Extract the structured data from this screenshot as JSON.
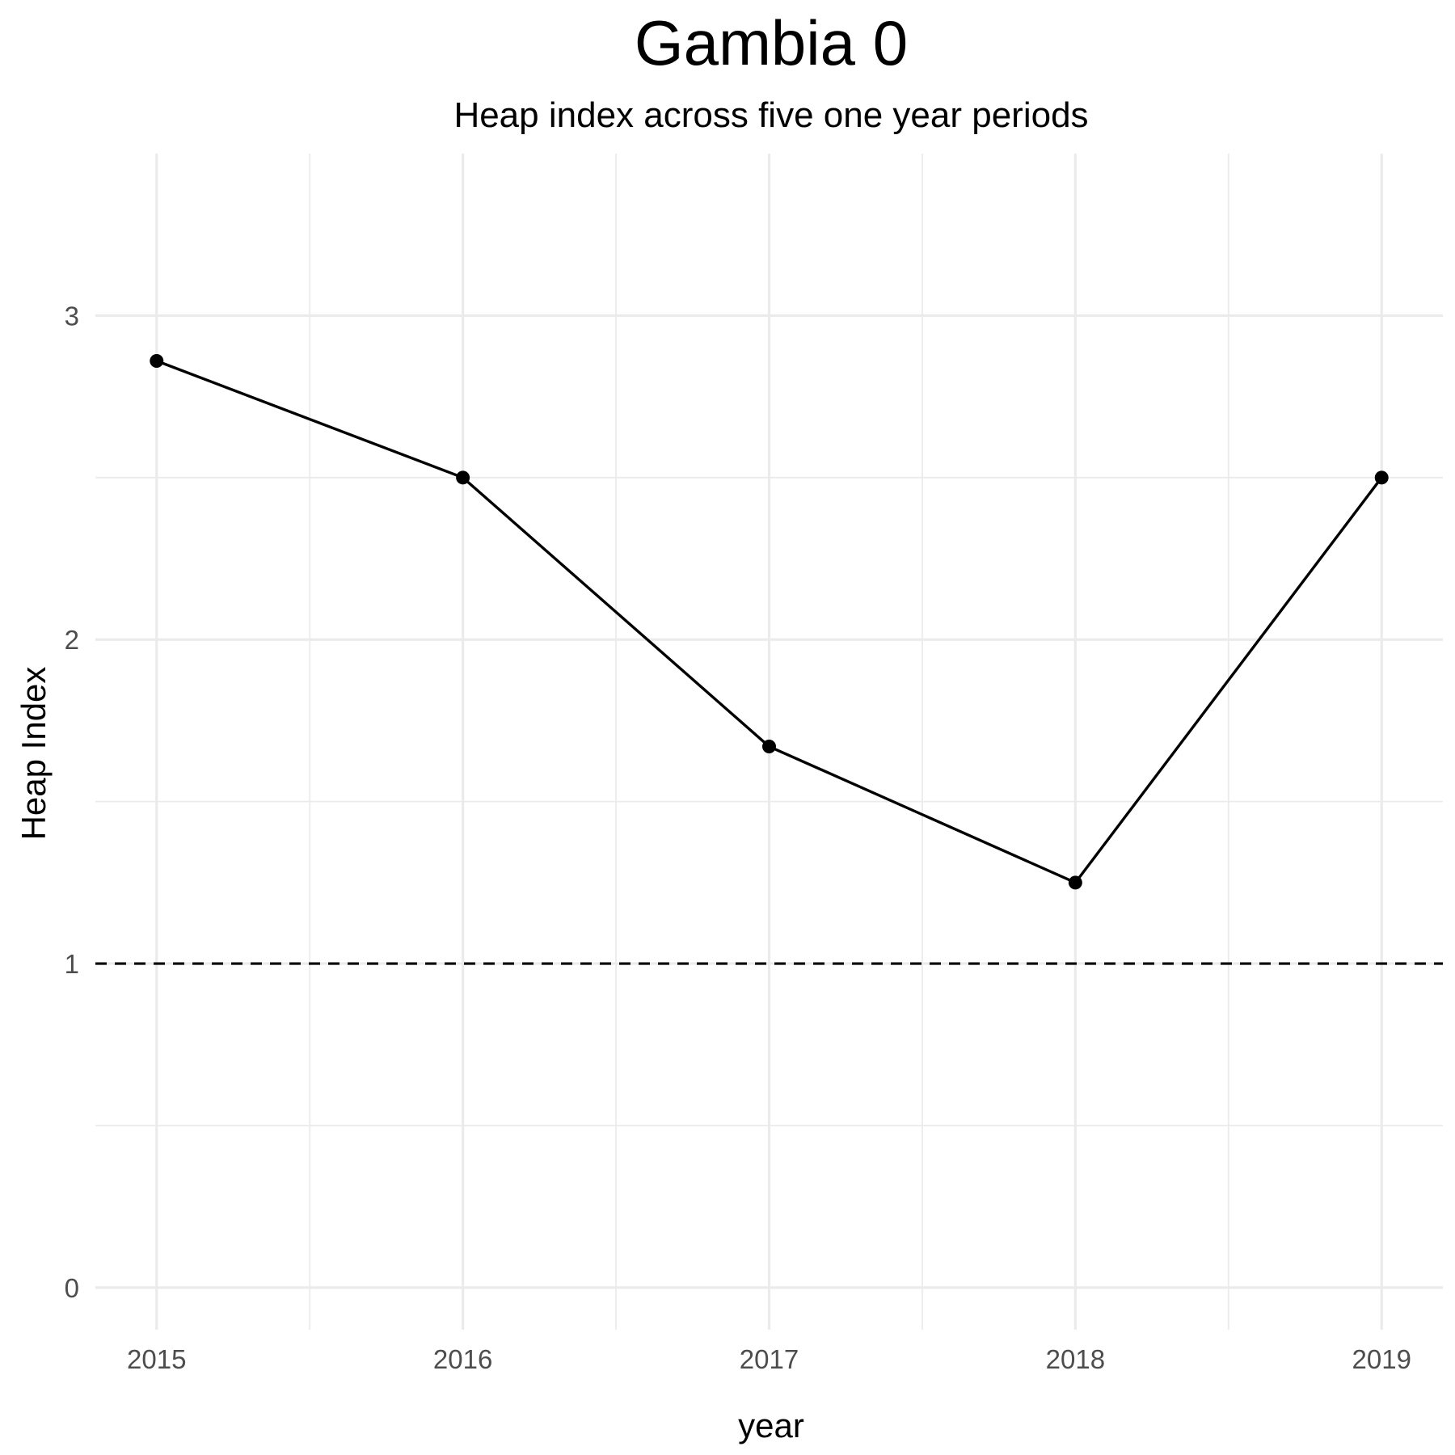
{
  "chart_data": {
    "type": "line",
    "title": "Gambia 0",
    "subtitle": "Heap index across five one year periods",
    "xlabel": "year",
    "ylabel": "Heap Index",
    "x": [
      2015,
      2016,
      2017,
      2018,
      2019
    ],
    "series": [
      {
        "values": [
          2.86,
          2.5,
          1.67,
          1.25,
          2.5
        ],
        "color": "#000000"
      }
    ],
    "xlim": [
      2014.8,
      2019.2
    ],
    "ylim": [
      -0.13,
      3.5
    ],
    "xticks": [
      "2015",
      "2016",
      "2017",
      "2018",
      "2019"
    ],
    "yticks": [
      "0",
      "1",
      "2",
      "3"
    ],
    "reference_line": {
      "y": 1,
      "style": "dashed",
      "color": "#000000"
    },
    "grid": true,
    "legend": "none"
  }
}
